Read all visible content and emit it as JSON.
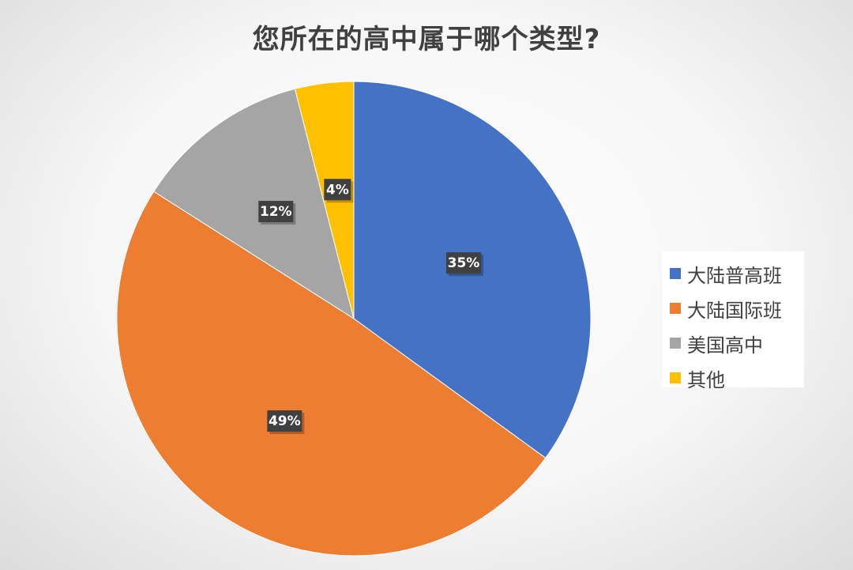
{
  "chart_data": {
    "type": "pie",
    "title": "您所在的高中属于哪个类型?",
    "slices": [
      {
        "name": "大陆普高班",
        "value": 35,
        "label": "35%",
        "color": "#4472C4"
      },
      {
        "name": "大陆国际班",
        "value": 49,
        "label": "49%",
        "color": "#ED7D31"
      },
      {
        "name": "美国高中",
        "value": 12,
        "label": "12%",
        "color": "#A5A5A5"
      },
      {
        "name": "其他",
        "value": 4,
        "label": "4%",
        "color": "#FFC000"
      }
    ],
    "legend_position": "right"
  }
}
